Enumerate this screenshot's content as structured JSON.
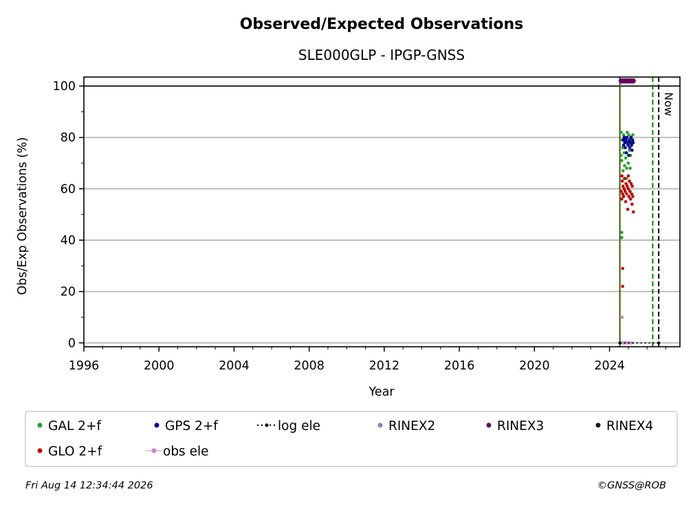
{
  "chart_data": {
    "type": "scatter",
    "title": "Observed/Expected Observations",
    "subtitle": "SLE000GLP - IPGP-GNSS",
    "xlabel": "Year",
    "ylabel": "Obs/Exp Observations (%)",
    "xlim": [
      1996,
      2027.75
    ],
    "ylim": [
      -1.5,
      103.5
    ],
    "x_ticks": [
      1996,
      2000,
      2004,
      2008,
      2012,
      2016,
      2020,
      2024
    ],
    "y_ticks": [
      0,
      20,
      40,
      60,
      80,
      100
    ],
    "grid": "horizontal",
    "reference_line_y": 100,
    "vertical_lines": [
      {
        "x": 2024.55,
        "style": "solid",
        "color": "#008000"
      },
      {
        "x": 2024.55,
        "style": "dotted",
        "color": "#c00000"
      },
      {
        "x": 2026.3,
        "style": "dashed",
        "color": "#008000"
      },
      {
        "x": 2026.62,
        "style": "dashed",
        "color": "#000000",
        "label": "Now"
      }
    ],
    "legend_position": "bottom",
    "legend": [
      {
        "name": "GAL 2+f",
        "color": "#2ca02c",
        "marker": "dot"
      },
      {
        "name": "GPS 2+f",
        "color": "#00008b",
        "marker": "dot"
      },
      {
        "name": "log ele",
        "color": "#000000",
        "marker": "dotted-line"
      },
      {
        "name": "RINEX2",
        "color": "#8c7fbf",
        "marker": "dot"
      },
      {
        "name": "RINEX3",
        "color": "#6a0060",
        "marker": "dot"
      },
      {
        "name": "RINEX4",
        "color": "#2b0a2a",
        "marker": "dot"
      },
      {
        "name": "GLO 2+f",
        "color": "#c00000",
        "marker": "dot"
      },
      {
        "name": "obs ele",
        "color": "#cc88cc",
        "marker": "dot-line"
      }
    ],
    "series": [
      {
        "name": "GAL 2+f",
        "color": "#2ca02c",
        "points": [
          [
            2024.62,
            82
          ],
          [
            2024.65,
            71
          ],
          [
            2024.68,
            79
          ],
          [
            2024.7,
            76
          ],
          [
            2024.72,
            67
          ],
          [
            2024.75,
            81
          ],
          [
            2024.78,
            74
          ],
          [
            2024.8,
            69
          ],
          [
            2024.83,
            80
          ],
          [
            2024.86,
            72
          ],
          [
            2024.88,
            78
          ],
          [
            2024.91,
            68
          ],
          [
            2024.94,
            82
          ],
          [
            2024.97,
            77
          ],
          [
            2025.0,
            70
          ],
          [
            2025.03,
            81
          ],
          [
            2025.06,
            75
          ],
          [
            2025.09,
            79
          ],
          [
            2025.12,
            73
          ],
          [
            2025.15,
            80
          ],
          [
            2025.18,
            77
          ],
          [
            2025.21,
            78
          ],
          [
            2025.24,
            81
          ],
          [
            2024.65,
            43
          ],
          [
            2024.65,
            41
          ],
          [
            2024.62,
            73
          ],
          [
            2024.9,
            64
          ],
          [
            2025.1,
            68
          ]
        ]
      },
      {
        "name": "GPS 2+f",
        "color": "#00008b",
        "points": [
          [
            2024.72,
            79
          ],
          [
            2024.75,
            77
          ],
          [
            2024.78,
            80
          ],
          [
            2024.81,
            78
          ],
          [
            2024.84,
            76
          ],
          [
            2024.87,
            79
          ],
          [
            2024.9,
            74
          ],
          [
            2024.93,
            80
          ],
          [
            2024.96,
            78
          ],
          [
            2024.99,
            77
          ],
          [
            2025.02,
            73
          ],
          [
            2025.05,
            79
          ],
          [
            2025.08,
            76
          ],
          [
            2025.11,
            78
          ],
          [
            2025.14,
            80
          ],
          [
            2025.17,
            77
          ],
          [
            2025.2,
            75
          ],
          [
            2025.23,
            79
          ],
          [
            2025.26,
            78
          ]
        ]
      },
      {
        "name": "GLO 2+f",
        "color": "#c00000",
        "points": [
          [
            2024.62,
            59
          ],
          [
            2024.65,
            56
          ],
          [
            2024.68,
            63
          ],
          [
            2024.7,
            58
          ],
          [
            2024.72,
            61
          ],
          [
            2024.75,
            57
          ],
          [
            2024.78,
            60
          ],
          [
            2024.8,
            64
          ],
          [
            2024.83,
            59
          ],
          [
            2024.86,
            55
          ],
          [
            2024.88,
            62
          ],
          [
            2024.91,
            58
          ],
          [
            2024.94,
            61
          ],
          [
            2024.97,
            52
          ],
          [
            2025.0,
            60
          ],
          [
            2025.03,
            57
          ],
          [
            2025.06,
            63
          ],
          [
            2025.09,
            59
          ],
          [
            2025.12,
            56
          ],
          [
            2025.15,
            62
          ],
          [
            2025.18,
            58
          ],
          [
            2025.21,
            61
          ],
          [
            2025.24,
            57
          ],
          [
            2025.27,
            51
          ],
          [
            2025.2,
            54
          ],
          [
            2024.7,
            29
          ],
          [
            2024.7,
            22
          ],
          [
            2024.66,
            65
          ],
          [
            2025.0,
            65
          ]
        ]
      },
      {
        "name": "RINEX3",
        "color": "#6a0060",
        "points": [
          [
            2024.62,
            102
          ],
          [
            2024.7,
            102
          ],
          [
            2024.78,
            102
          ],
          [
            2024.86,
            102
          ],
          [
            2024.94,
            102
          ],
          [
            2025.02,
            102
          ],
          [
            2025.1,
            102
          ],
          [
            2025.18,
            102
          ],
          [
            2025.26,
            102
          ]
        ]
      },
      {
        "name": "obs ele",
        "color": "#cc88cc",
        "points": [
          [
            2024.68,
            10
          ],
          [
            2024.62,
            0
          ],
          [
            2024.72,
            0
          ],
          [
            2024.8,
            0
          ],
          [
            2024.88,
            0
          ],
          [
            2024.96,
            0
          ],
          [
            2025.04,
            0
          ],
          [
            2025.12,
            0
          ],
          [
            2025.2,
            0
          ]
        ]
      },
      {
        "name": "log ele",
        "color": "#000000",
        "points": [
          [
            2024.55,
            0
          ],
          [
            2026.62,
            0
          ]
        ]
      }
    ]
  },
  "footer": {
    "timestamp": "Fri Aug 14 12:34:44 2026",
    "copyright": "©GNSS@ROB"
  }
}
